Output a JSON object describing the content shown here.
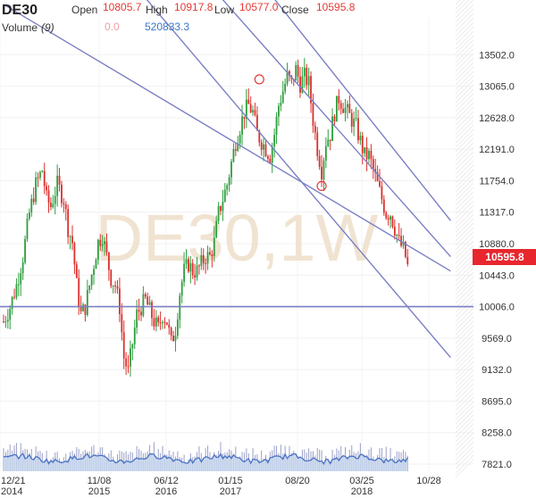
{
  "header": {
    "symbol": "DE30",
    "open_label": "Open",
    "open_value": "10805.7",
    "high_label": "High",
    "high_value": "10917.8",
    "low_label": "Low",
    "low_value": "10577.0",
    "close_label": "Close",
    "close_value": "10595.8",
    "volume_label": "Volume",
    "volume_period": "(9)",
    "volume_value": "0.0",
    "volume_ma_value": "520833.3"
  },
  "watermark": "DE30,1W",
  "last_price_tag": "10595.8",
  "colors": {
    "up": "#2e9e3e",
    "down": "#d9302c",
    "text_red": "#e53935",
    "text_blue": "#3a78c4",
    "line": "#7b7fc4",
    "price_tag": "#e8262d",
    "volume_fill": "#c5d6ee",
    "volume_line": "#4a73c4",
    "volume_bar": "#9aa0c8"
  },
  "chart_data": {
    "type": "candlestick",
    "title": "DE30",
    "timeframe": "1W",
    "x_tick_labels": [
      {
        "line1": "12/21",
        "line2": "2014"
      },
      {
        "line1": "11/08",
        "line2": "2015"
      },
      {
        "line1": "06/12",
        "line2": "2016"
      },
      {
        "line1": "01/15",
        "line2": "2017"
      },
      {
        "line1": "08/20",
        "line2": ""
      },
      {
        "line1": "03/25",
        "line2": "2018"
      },
      {
        "line1": "10/28",
        "line2": ""
      }
    ],
    "y_tick_labels": [
      "13502.0",
      "13065.0",
      "12628.0",
      "12191.0",
      "11754.0",
      "11317.0",
      "10880.0",
      "10443.0",
      "10006.0",
      "9569.0",
      "9132.0",
      "8695.0",
      "8258.0",
      "7821.0"
    ],
    "ylim": [
      7821,
      13939
    ],
    "weeks": 208,
    "ohlc_anchors": [
      [
        0,
        9800
      ],
      [
        3,
        10000
      ],
      [
        6,
        10300
      ],
      [
        9,
        10700
      ],
      [
        12,
        11300
      ],
      [
        15,
        11700
      ],
      [
        18,
        11900
      ],
      [
        20,
        11500
      ],
      [
        22,
        11400
      ],
      [
        25,
        11700
      ],
      [
        28,
        11500
      ],
      [
        30,
        11100
      ],
      [
        32,
        10900
      ],
      [
        34,
        10300
      ],
      [
        36,
        9900
      ],
      [
        38,
        10000
      ],
      [
        40,
        10300
      ],
      [
        42,
        10600
      ],
      [
        44,
        10900
      ],
      [
        46,
        11000
      ],
      [
        48,
        10700
      ],
      [
        50,
        10400
      ],
      [
        52,
        10300
      ],
      [
        54,
        10000
      ],
      [
        56,
        9300
      ],
      [
        58,
        9100
      ],
      [
        60,
        9500
      ],
      [
        62,
        9900
      ],
      [
        64,
        10000
      ],
      [
        66,
        10100
      ],
      [
        68,
        9950
      ],
      [
        70,
        9800
      ],
      [
        72,
        9700
      ],
      [
        74,
        9900
      ],
      [
        76,
        9800
      ],
      [
        78,
        9500
      ],
      [
        80,
        9700
      ],
      [
        82,
        10200
      ],
      [
        84,
        10500
      ],
      [
        86,
        10600
      ],
      [
        88,
        10500
      ],
      [
        90,
        10500
      ],
      [
        92,
        10600
      ],
      [
        94,
        10700
      ],
      [
        96,
        10700
      ],
      [
        98,
        10900
      ],
      [
        100,
        11300
      ],
      [
        102,
        11500
      ],
      [
        104,
        11700
      ],
      [
        106,
        12000
      ],
      [
        108,
        12300
      ],
      [
        110,
        12500
      ],
      [
        112,
        12700
      ],
      [
        114,
        12800
      ],
      [
        116,
        12700
      ],
      [
        118,
        12400
      ],
      [
        120,
        12300
      ],
      [
        122,
        12200
      ],
      [
        124,
        12100
      ],
      [
        126,
        12400
      ],
      [
        128,
        12800
      ],
      [
        130,
        13000
      ],
      [
        132,
        13200
      ],
      [
        134,
        13100
      ],
      [
        136,
        13300
      ],
      [
        138,
        13100
      ],
      [
        140,
        13200
      ],
      [
        142,
        13100
      ],
      [
        144,
        12600
      ],
      [
        146,
        12200
      ],
      [
        148,
        11900
      ],
      [
        150,
        12300
      ],
      [
        152,
        12400
      ],
      [
        154,
        12700
      ],
      [
        156,
        12900
      ],
      [
        158,
        12800
      ],
      [
        160,
        12700
      ],
      [
        162,
        12600
      ],
      [
        164,
        12500
      ],
      [
        166,
        12300
      ],
      [
        168,
        12100
      ],
      [
        170,
        12100
      ],
      [
        172,
        11900
      ],
      [
        174,
        11700
      ],
      [
        176,
        11500
      ],
      [
        178,
        11300
      ],
      [
        180,
        11300
      ],
      [
        182,
        11100
      ],
      [
        184,
        10900
      ],
      [
        186,
        10800
      ],
      [
        188,
        10600
      ]
    ],
    "horizontal_line": 10006,
    "channel_lines": [
      {
        "from": [
          0,
          14200
        ],
        "to": [
          208,
          10500
        ]
      },
      {
        "from": [
          60,
          14500
        ],
        "to": [
          208,
          9300
        ]
      },
      {
        "from": [
          95,
          14500
        ],
        "to": [
          208,
          10700
        ]
      },
      {
        "from": [
          120,
          14500
        ],
        "to": [
          208,
          11200
        ]
      }
    ],
    "markers": [
      {
        "week": 119,
        "price": 13160
      },
      {
        "week": 148,
        "price": 11680
      }
    ],
    "last_close": 10595.8
  }
}
